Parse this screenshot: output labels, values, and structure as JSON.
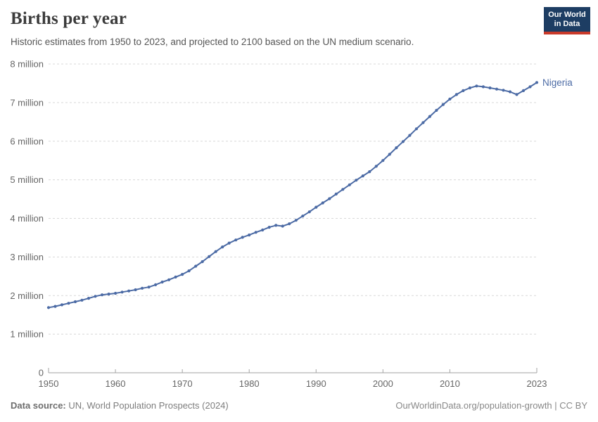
{
  "header": {
    "title": "Births per year",
    "subtitle": "Historic estimates from 1950 to 2023, and projected to 2100 based on the UN medium scenario.",
    "logo": {
      "line1": "Our World",
      "line2": "in Data",
      "bg_color": "#1d3d63",
      "accent_color": "#c93a2a"
    }
  },
  "chart_data": {
    "type": "line",
    "title": "Births per year",
    "unit": "births per year",
    "xlabel": "",
    "ylabel": "",
    "ylim": [
      0,
      8
    ],
    "grid": true,
    "legend_position": "end-of-line",
    "x_ticks": [
      1950,
      1960,
      1970,
      1980,
      1990,
      2000,
      2010,
      2023
    ],
    "y_ticks": [
      {
        "value": 0,
        "label": "0"
      },
      {
        "value": 1,
        "label": "1 million"
      },
      {
        "value": 2,
        "label": "2 million"
      },
      {
        "value": 3,
        "label": "3 million"
      },
      {
        "value": 4,
        "label": "4 million"
      },
      {
        "value": 5,
        "label": "5 million"
      },
      {
        "value": 6,
        "label": "6 million"
      },
      {
        "value": 7,
        "label": "7 million"
      },
      {
        "value": 8,
        "label": "8 million"
      }
    ],
    "x": [
      1950,
      1951,
      1952,
      1953,
      1954,
      1955,
      1956,
      1957,
      1958,
      1959,
      1960,
      1961,
      1962,
      1963,
      1964,
      1965,
      1966,
      1967,
      1968,
      1969,
      1970,
      1971,
      1972,
      1973,
      1974,
      1975,
      1976,
      1977,
      1978,
      1979,
      1980,
      1981,
      1982,
      1983,
      1984,
      1985,
      1986,
      1987,
      1988,
      1989,
      1990,
      1991,
      1992,
      1993,
      1994,
      1995,
      1996,
      1997,
      1998,
      1999,
      2000,
      2001,
      2002,
      2003,
      2004,
      2005,
      2006,
      2007,
      2008,
      2009,
      2010,
      2011,
      2012,
      2013,
      2014,
      2015,
      2016,
      2017,
      2018,
      2019,
      2020,
      2021,
      2022,
      2023
    ],
    "series": [
      {
        "name": "Nigeria",
        "color": "#4c6ba5",
        "unit_scale": "millions",
        "values": [
          1.69,
          1.72,
          1.76,
          1.8,
          1.84,
          1.88,
          1.93,
          1.98,
          2.02,
          2.04,
          2.06,
          2.09,
          2.12,
          2.15,
          2.19,
          2.22,
          2.28,
          2.35,
          2.41,
          2.48,
          2.55,
          2.64,
          2.76,
          2.88,
          3.01,
          3.14,
          3.26,
          3.36,
          3.44,
          3.51,
          3.57,
          3.64,
          3.7,
          3.77,
          3.82,
          3.8,
          3.86,
          3.95,
          4.06,
          4.17,
          4.29,
          4.4,
          4.51,
          4.63,
          4.75,
          4.87,
          4.99,
          5.1,
          5.21,
          5.35,
          5.5,
          5.66,
          5.83,
          5.99,
          6.15,
          6.32,
          6.48,
          6.64,
          6.8,
          6.95,
          7.09,
          7.21,
          7.31,
          7.38,
          7.43,
          7.41,
          7.38,
          7.35,
          7.32,
          7.28,
          7.21,
          7.31,
          7.41,
          7.52
        ]
      }
    ]
  },
  "footer": {
    "source_label": "Data source:",
    "source_text": " UN, World Population Prospects (2024)",
    "credit": "OurWorldinData.org/population-growth | CC BY"
  }
}
